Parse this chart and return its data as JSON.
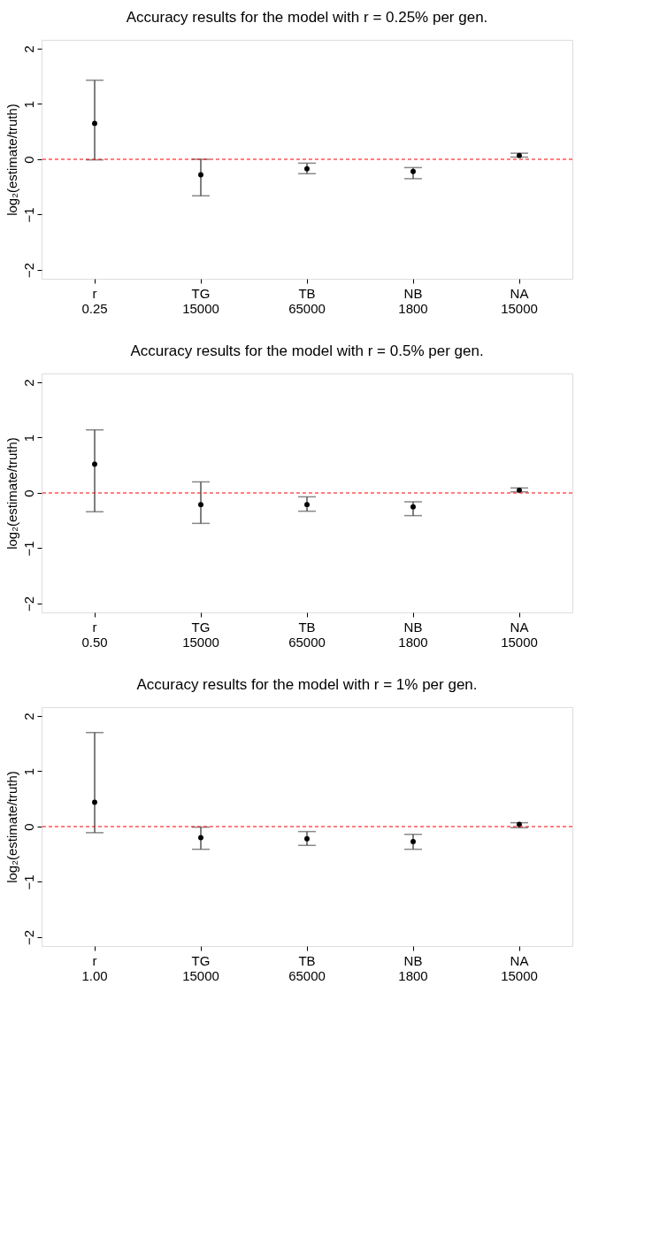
{
  "chart_data": [
    {
      "type": "scatter",
      "title": "Accuracy results for the model with r = 0.25% per gen.",
      "ylabel": "log₂(estimate/truth)",
      "categories": [
        "r\n0.25",
        "TG\n15000",
        "TB\n65000",
        "NB\n1800",
        "NA\n15000"
      ],
      "ylim": [
        -2.16,
        2.16
      ],
      "yticks": [
        {
          "value": -2,
          "label": "−2"
        },
        {
          "value": -1,
          "label": "−1"
        },
        0,
        1,
        2
      ],
      "grid": false,
      "marker": "circle",
      "series": [
        {
          "color": "#000000",
          "values": [
            0.65,
            -0.28,
            -0.17,
            -0.22,
            0.07
          ],
          "errors": [
            [
              -0.01,
              1.43
            ],
            [
              -0.66,
              0.0
            ],
            [
              -0.26,
              -0.07
            ],
            [
              -0.35,
              -0.15
            ],
            [
              0.04,
              0.11
            ]
          ]
        }
      ],
      "ref_lines": [
        {
          "axis": "y",
          "value": 0,
          "color": "#ff0000",
          "line_style": "dashed"
        }
      ]
    },
    {
      "type": "scatter",
      "title": "Accuracy results for the model with r = 0.5% per gen.",
      "ylabel": "log₂(estimate/truth)",
      "categories": [
        "r\n0.50",
        "TG\n15000",
        "TB\n65000",
        "NB\n1800",
        "NA\n15000"
      ],
      "ylim": [
        -2.16,
        2.16
      ],
      "yticks": [
        {
          "value": -2,
          "label": "−2"
        },
        {
          "value": -1,
          "label": "−1"
        },
        0,
        1,
        2
      ],
      "grid": false,
      "marker": "circle",
      "series": [
        {
          "color": "#000000",
          "values": [
            0.52,
            -0.21,
            -0.21,
            -0.25,
            0.05
          ],
          "errors": [
            [
              -0.34,
              1.14
            ],
            [
              -0.55,
              0.2
            ],
            [
              -0.33,
              -0.07
            ],
            [
              -0.41,
              -0.16
            ],
            [
              0.02,
              0.09
            ]
          ]
        }
      ],
      "ref_lines": [
        {
          "axis": "y",
          "value": 0,
          "color": "#ff0000",
          "line_style": "dashed"
        }
      ]
    },
    {
      "type": "scatter",
      "title": "Accuracy results for the model with r = 1% per gen.",
      "ylabel": "log₂(estimate/truth)",
      "categories": [
        "r\n1.00",
        "TG\n15000",
        "TB\n65000",
        "NB\n1800",
        "NA\n15000"
      ],
      "ylim": [
        -2.16,
        2.16
      ],
      "yticks": [
        {
          "value": -2,
          "label": "−2"
        },
        {
          "value": -1,
          "label": "−1"
        },
        0,
        1,
        2
      ],
      "grid": false,
      "marker": "circle",
      "series": [
        {
          "color": "#000000",
          "values": [
            0.44,
            -0.2,
            -0.22,
            -0.27,
            0.04
          ],
          "errors": [
            [
              -0.11,
              1.7
            ],
            [
              -0.41,
              -0.01
            ],
            [
              -0.34,
              -0.09
            ],
            [
              -0.41,
              -0.14
            ],
            [
              -0.02,
              0.07
            ]
          ]
        }
      ],
      "ref_lines": [
        {
          "axis": "y",
          "value": 0,
          "color": "#ff0000",
          "line_style": "dashed"
        }
      ]
    }
  ]
}
